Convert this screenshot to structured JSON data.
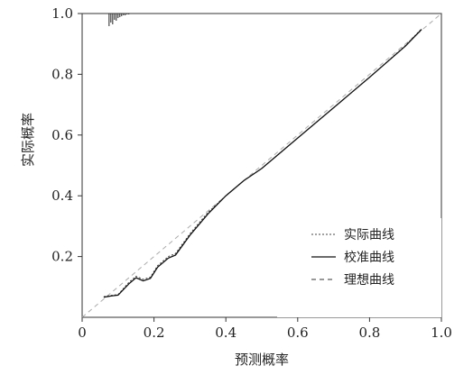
{
  "chart_data": {
    "type": "line",
    "title": "",
    "xlabel": "预测概率",
    "ylabel": "实际概率",
    "xlim": [
      0,
      1
    ],
    "ylim": [
      0,
      1
    ],
    "grid": false,
    "legend_placement": "bottom-right",
    "x_ticks": [
      {
        "value": 0,
        "label": "0"
      },
      {
        "value": 0.2,
        "label": "0.2"
      },
      {
        "value": 0.4,
        "label": "0.4"
      },
      {
        "value": 0.6,
        "label": "0.6"
      },
      {
        "value": 0.8,
        "label": "0.8"
      },
      {
        "value": 1.0,
        "label": "1.0"
      }
    ],
    "y_ticks": [
      {
        "value": 0.2,
        "label": "0.2"
      },
      {
        "value": 0.4,
        "label": "0.4"
      },
      {
        "value": 0.6,
        "label": "0.6"
      },
      {
        "value": 0.8,
        "label": "0.8"
      },
      {
        "value": 1.0,
        "label": "1.0"
      }
    ],
    "series": [
      {
        "name": "实际曲线",
        "style": "dotted",
        "color": "#444444",
        "x": [
          0.06,
          0.08,
          0.1,
          0.13,
          0.15,
          0.17,
          0.19,
          0.21,
          0.24,
          0.26,
          0.3,
          0.35,
          0.4,
          0.45,
          0.5,
          0.55,
          0.6,
          0.7,
          0.8,
          0.9,
          0.945
        ],
        "y": [
          0.068,
          0.072,
          0.075,
          0.115,
          0.135,
          0.125,
          0.132,
          0.17,
          0.2,
          0.21,
          0.275,
          0.345,
          0.4,
          0.45,
          0.49,
          0.54,
          0.59,
          0.69,
          0.79,
          0.895,
          0.95
        ]
      },
      {
        "name": "校准曲线",
        "style": "solid",
        "color": "#111111",
        "x": [
          0.06,
          0.08,
          0.1,
          0.13,
          0.15,
          0.17,
          0.19,
          0.21,
          0.24,
          0.26,
          0.3,
          0.35,
          0.4,
          0.45,
          0.5,
          0.55,
          0.6,
          0.7,
          0.8,
          0.9,
          0.945
        ],
        "y": [
          0.066,
          0.07,
          0.073,
          0.11,
          0.13,
          0.12,
          0.128,
          0.165,
          0.195,
          0.205,
          0.27,
          0.34,
          0.4,
          0.45,
          0.49,
          0.54,
          0.59,
          0.69,
          0.79,
          0.893,
          0.948
        ]
      },
      {
        "name": "理想曲线",
        "style": "dashed",
        "color": "#aaaaaa",
        "x": [
          0,
          1
        ],
        "y": [
          0,
          1
        ]
      }
    ],
    "rug": {
      "side": "top",
      "x": [
        0.075,
        0.08,
        0.085,
        0.09,
        0.095,
        0.1,
        0.105,
        0.11,
        0.115,
        0.12,
        0.125,
        0.13
      ],
      "counts": [
        14,
        10,
        12,
        7,
        8,
        5,
        4,
        3,
        2,
        2,
        1,
        1
      ]
    }
  }
}
